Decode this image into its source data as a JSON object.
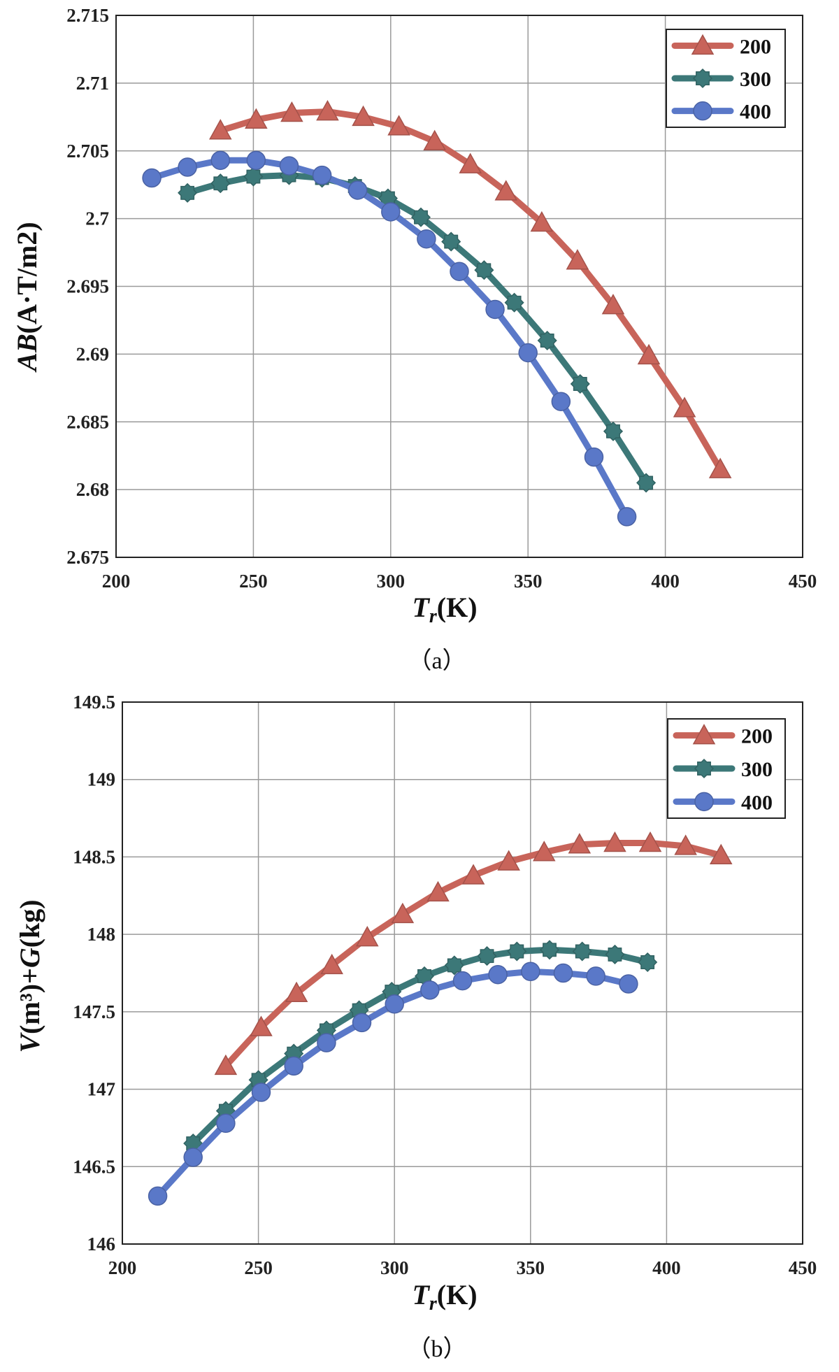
{
  "chart_data": [
    {
      "type": "line",
      "caption": "（a）",
      "xlabel": {
        "main": "T",
        "sub": "r",
        "unit": "(K)"
      },
      "ylabel": {
        "main": "AB",
        "unit": "(A·T/m2)"
      },
      "xlim": [
        200,
        450
      ],
      "ylim": [
        2.675,
        2.715
      ],
      "xticks": [
        "200",
        "250",
        "300",
        "350",
        "400",
        "450"
      ],
      "yticks": [
        "2.675",
        "2.68",
        "2.685",
        "2.69",
        "2.695",
        "2.7",
        "2.705",
        "2.71",
        "2.715"
      ],
      "grid": true,
      "legend_position": "top-right",
      "series": [
        {
          "name": "200",
          "color": "#c8645a",
          "marker": "triangle",
          "x": [
            238,
            251,
            264,
            277,
            290,
            303,
            316,
            329,
            342,
            355,
            368,
            381,
            394,
            407,
            420
          ],
          "y": [
            2.7065,
            2.7073,
            2.7078,
            2.7079,
            2.7075,
            2.7068,
            2.7057,
            2.704,
            2.702,
            2.6997,
            2.6969,
            2.6936,
            2.6899,
            2.686,
            2.6815
          ]
        },
        {
          "name": "300",
          "color": "#3c7878",
          "marker": "gear",
          "x": [
            226,
            238,
            250,
            263,
            275,
            287,
            299,
            311,
            322,
            334,
            345,
            357,
            369,
            381,
            393
          ],
          "y": [
            2.7019,
            2.7026,
            2.7031,
            2.7032,
            2.703,
            2.7024,
            2.7015,
            2.7001,
            2.6983,
            2.6962,
            2.6938,
            2.691,
            2.6878,
            2.6843,
            2.6805
          ]
        },
        {
          "name": "400",
          "color": "#5a78c8",
          "marker": "circle",
          "x": [
            213,
            226,
            238,
            251,
            263,
            275,
            288,
            300,
            313,
            325,
            338,
            350,
            362,
            374,
            386
          ],
          "y": [
            2.703,
            2.7038,
            2.7043,
            2.7043,
            2.7039,
            2.7032,
            2.7021,
            2.7005,
            2.6985,
            2.6961,
            2.6933,
            2.6901,
            2.6865,
            2.6824,
            2.678
          ]
        }
      ]
    },
    {
      "type": "line",
      "caption": "（b）",
      "xlabel": {
        "main": "T",
        "sub": "r",
        "unit": "(K)"
      },
      "ylabel": {
        "main": "V",
        "unit1": "(m³)+",
        "main2": "G",
        "unit2": "(kg)"
      },
      "xlim": [
        200,
        450
      ],
      "ylim": [
        146,
        149.5
      ],
      "xticks": [
        "200",
        "250",
        "300",
        "350",
        "400",
        "450"
      ],
      "yticks": [
        "146",
        "146.5",
        "147",
        "147.5",
        "148",
        "148.5",
        "149",
        "149.5"
      ],
      "grid": true,
      "legend_position": "top-right",
      "series": [
        {
          "name": "200",
          "color": "#c8645a",
          "marker": "triangle",
          "x": [
            238,
            251,
            264,
            277,
            290,
            303,
            316,
            329,
            342,
            355,
            368,
            381,
            394,
            407,
            420
          ],
          "y": [
            147.15,
            147.4,
            147.62,
            147.8,
            147.98,
            148.13,
            148.27,
            148.38,
            148.47,
            148.53,
            148.58,
            148.59,
            148.59,
            148.57,
            148.51
          ]
        },
        {
          "name": "300",
          "color": "#3c7878",
          "marker": "gear",
          "x": [
            226,
            238,
            250,
            263,
            275,
            287,
            299,
            311,
            322,
            334,
            345,
            357,
            369,
            381,
            393
          ],
          "y": [
            146.65,
            146.86,
            147.06,
            147.23,
            147.38,
            147.51,
            147.63,
            147.73,
            147.8,
            147.86,
            147.89,
            147.9,
            147.89,
            147.87,
            147.82
          ]
        },
        {
          "name": "400",
          "color": "#5a78c8",
          "marker": "circle",
          "x": [
            213,
            226,
            238,
            251,
            263,
            275,
            288,
            300,
            313,
            325,
            338,
            350,
            362,
            374,
            386
          ],
          "y": [
            146.31,
            146.56,
            146.78,
            146.98,
            147.15,
            147.3,
            147.43,
            147.55,
            147.64,
            147.7,
            147.74,
            147.76,
            147.75,
            147.73,
            147.68
          ]
        }
      ]
    }
  ]
}
